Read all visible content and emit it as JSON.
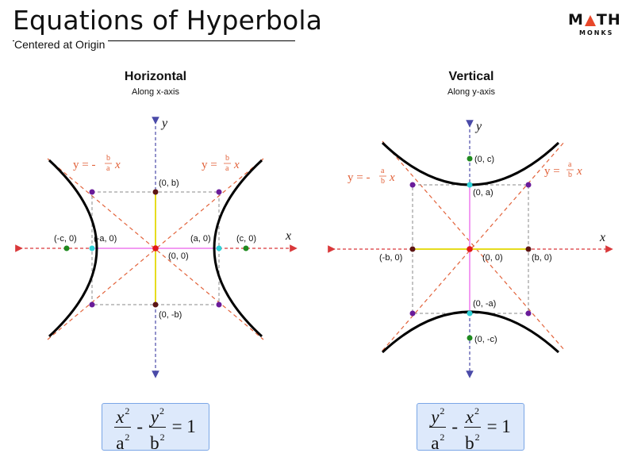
{
  "header": {
    "title": "Equations of Hyperbola",
    "subtitle": "Centered at Origin",
    "logo_top_left": "M",
    "logo_top_right": "TH",
    "logo_bottom": "MONKS"
  },
  "panels": {
    "horizontal": {
      "heading": "Horizontal",
      "subheading": "Along x-axis",
      "axis_x": "x",
      "axis_y": "y",
      "asymptote_neg": {
        "prefix": "y = -",
        "num": "b",
        "den": "a",
        "var": "x"
      },
      "asymptote_pos": {
        "prefix": "y = ",
        "num": "b",
        "den": "a",
        "var": "x"
      },
      "points": {
        "origin": "(0, 0)",
        "vertex_left": "(-a, 0)",
        "vertex_right": "(a, 0)",
        "focus_left": "(-c, 0)",
        "focus_right": "(c, 0)",
        "co_top": "(0, b)",
        "co_bottom": "(0, -b)"
      },
      "equation": {
        "first_num": "x",
        "first_den": "a",
        "second_num": "y",
        "second_den": "b",
        "exp": "2",
        "minus": "-",
        "equals": "= 1"
      }
    },
    "vertical": {
      "heading": "Vertical",
      "subheading": "Along y-axis",
      "axis_x": "x",
      "axis_y": "y",
      "asymptote_neg": {
        "prefix": "y = -",
        "num": "a",
        "den": "b",
        "var": "x"
      },
      "asymptote_pos": {
        "prefix": "y = ",
        "num": "a",
        "den": "b",
        "var": "x"
      },
      "points": {
        "origin": "(0, 0)",
        "vertex_top": "(0, a)",
        "vertex_bottom": "(0, -a)",
        "focus_top": "(0, c)",
        "focus_bottom": "(0, -c)",
        "co_left": "(-b, 0)",
        "co_right": "(b, 0)"
      },
      "equation": {
        "first_num": "y",
        "first_den": "a",
        "second_num": "x",
        "second_den": "b",
        "exp": "2",
        "minus": "-",
        "equals": "= 1"
      }
    }
  },
  "colors": {
    "axis": "#4a4aa8",
    "asymptote": "#e2623a",
    "box": "#888888",
    "curve": "#000000",
    "transverse_axis": "#f29bf2",
    "conjugate_axis": "#e6dc1e",
    "x_axis_arrow": "#d9383a",
    "vertex_point": "#2ed2d8",
    "focus_point": "#1f8a1f",
    "corner_point": "#6a1b9a",
    "co_vertex_point": "#5c1515",
    "center_point": "#e01919",
    "equation_bg": "#dde9fb",
    "equation_border": "#7aa6e6"
  }
}
